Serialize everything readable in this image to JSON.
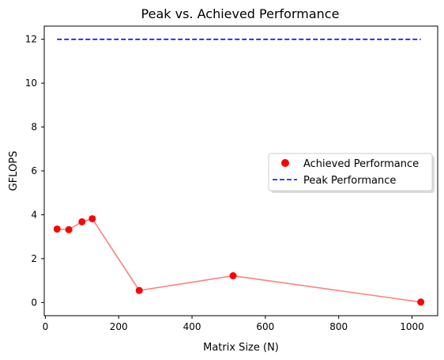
{
  "chart_data": {
    "type": "scatter",
    "title": "Peak vs. Achieved Performance",
    "xlabel": "Matrix Size (N)",
    "ylabel": "GFLOPS",
    "xlim": [
      -3,
      1070
    ],
    "ylim": [
      -0.6,
      12.6
    ],
    "xticks": [
      0,
      200,
      400,
      600,
      800,
      1000
    ],
    "yticks": [
      0,
      2,
      4,
      6,
      8,
      10,
      12
    ],
    "grid": false,
    "legend_position": "center-right",
    "series": [
      {
        "name": "Achieved Performance",
        "kind": "scatter",
        "color": "#ff0000",
        "line_color": "#ff8080",
        "x": [
          32,
          64,
          100,
          128,
          256,
          512,
          1024
        ],
        "y": [
          3.35,
          3.32,
          3.68,
          3.82,
          0.55,
          1.22,
          0.02
        ]
      },
      {
        "name": "Peak Performance",
        "kind": "line",
        "style": "dashed",
        "color": "#0000ff",
        "x": [
          32,
          1024
        ],
        "y": [
          12,
          12
        ]
      }
    ]
  }
}
